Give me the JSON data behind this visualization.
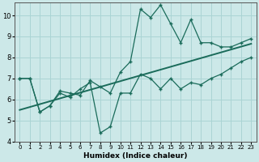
{
  "xlabel": "Humidex (Indice chaleur)",
  "bg_color": "#cce8e8",
  "grid_color": "#aad4d4",
  "line_color": "#1a6b5a",
  "xlim": [
    -0.5,
    23.5
  ],
  "ylim": [
    4,
    10.6
  ],
  "xticks": [
    0,
    1,
    2,
    3,
    4,
    5,
    6,
    7,
    8,
    9,
    10,
    11,
    12,
    13,
    14,
    15,
    16,
    17,
    18,
    19,
    20,
    21,
    22,
    23
  ],
  "yticks": [
    4,
    5,
    6,
    7,
    8,
    9,
    10
  ],
  "line1_x": [
    0,
    1,
    2,
    3,
    4,
    5,
    6,
    7,
    8,
    9,
    10,
    11,
    12,
    13,
    14,
    15,
    16,
    17,
    18,
    19,
    20,
    21,
    22,
    23
  ],
  "line1_y": [
    7.0,
    7.0,
    5.4,
    5.7,
    6.4,
    6.3,
    6.2,
    6.9,
    6.6,
    6.3,
    7.3,
    7.8,
    10.3,
    9.9,
    10.5,
    9.6,
    8.7,
    9.8,
    8.7,
    8.7,
    8.5,
    8.5,
    8.7,
    8.9
  ],
  "line2_x": [
    0,
    1,
    2,
    3,
    4,
    5,
    6,
    7,
    8,
    9,
    10,
    11,
    12,
    13,
    14,
    15,
    16,
    17,
    18,
    19,
    20,
    21,
    22,
    23
  ],
  "line2_y": [
    7.0,
    7.0,
    5.4,
    5.7,
    6.3,
    6.1,
    6.5,
    6.8,
    4.4,
    4.7,
    6.3,
    6.3,
    7.2,
    7.0,
    6.5,
    7.0,
    6.5,
    6.8,
    6.7,
    7.0,
    7.2,
    7.5,
    7.8,
    8.0
  ],
  "line3_x": [
    0,
    23
  ],
  "line3_y": [
    5.5,
    8.65
  ],
  "xlabel_fontsize": 6.5,
  "tick_fontsize_x": 5.0,
  "tick_fontsize_y": 6.0
}
